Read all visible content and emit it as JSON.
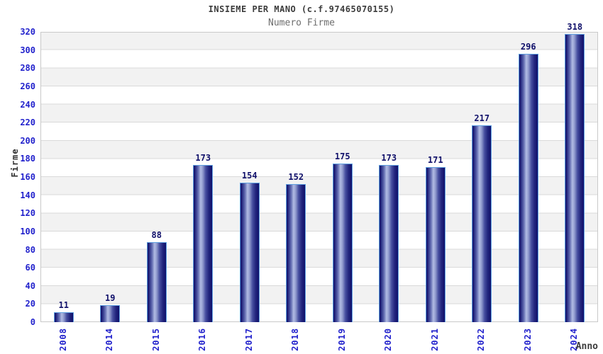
{
  "chart_data": {
    "type": "bar",
    "title": "INSIEME PER MANO (c.f.97465070155)",
    "subtitle": "Numero Firme",
    "xlabel": "Anno",
    "ylabel": "Firme",
    "categories": [
      "2008",
      "2014",
      "2015",
      "2016",
      "2017",
      "2018",
      "2019",
      "2020",
      "2021",
      "2022",
      "2023",
      "2024"
    ],
    "values": [
      11,
      19,
      88,
      173,
      154,
      152,
      175,
      173,
      171,
      217,
      296,
      318
    ],
    "ylim": [
      0,
      320
    ],
    "ytick_step": 20,
    "grid": true,
    "legend_position": "none",
    "band_style": "alternating horizontal gray/white bands of 20 units",
    "colors": {
      "tick_label": "#2121cc",
      "value_label": "#10106a",
      "bar_border": "#5e9fe0",
      "bar_dark": "#10106a",
      "bar_mid": "#474fa0",
      "bar_highlight": "#b2bce4",
      "band_gray": "#f2f2f2",
      "grid_line": "#d9d9d9",
      "title_color": "#3c3c3c",
      "subtitle_color": "#6e6e6e",
      "axis_title_color": "#2e2e2e"
    }
  }
}
